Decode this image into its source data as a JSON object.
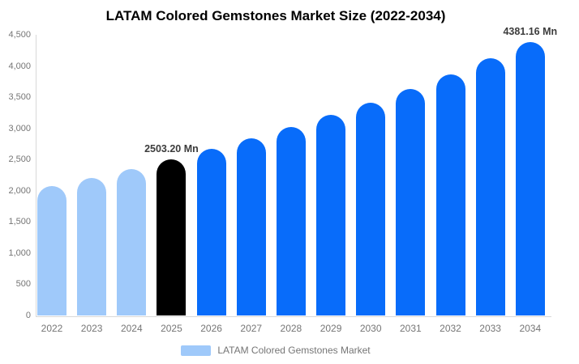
{
  "chart_data": {
    "type": "bar",
    "title": "LATAM Colored Gemstones Market Size (2022-2034)",
    "unit": "Mn",
    "categories": [
      "2022",
      "2023",
      "2024",
      "2025",
      "2026",
      "2027",
      "2028",
      "2029",
      "2030",
      "2031",
      "2032",
      "2033",
      "2034"
    ],
    "values": [
      2075,
      2210,
      2350,
      2503.2,
      2665,
      2835,
      3017,
      3211,
      3417,
      3637,
      3870,
      4119,
      4381.16
    ],
    "bar_roles": [
      "historical",
      "historical",
      "historical",
      "base-year",
      "forecast",
      "forecast",
      "forecast",
      "forecast",
      "forecast",
      "forecast",
      "forecast",
      "forecast",
      "forecast"
    ],
    "colors": {
      "historical": "#9FC9FA",
      "base-year": "#000000",
      "forecast": "#086CFA"
    },
    "data_labels": [
      {
        "index": 3,
        "category": "2025",
        "text": "2503.20 Mn"
      },
      {
        "index": 12,
        "category": "2034",
        "text": "4381.16 Mn"
      }
    ],
    "ylim": [
      0,
      4500
    ],
    "ytick_step": 500,
    "ytick_labels": [
      "0",
      "500",
      "1,000",
      "1,500",
      "2,000",
      "2,500",
      "3,000",
      "3,500",
      "4,000",
      "4,500"
    ],
    "grid": false,
    "xlabel": "",
    "ylabel": "",
    "legend": {
      "position": "bottom-center",
      "label": "LATAM Colored Gemstones Market",
      "swatch_color": "#9FC9FA"
    },
    "axis_color": "#D8D8D8",
    "tick_label_color": "#757575",
    "data_label_color": "#3C3C3C"
  }
}
